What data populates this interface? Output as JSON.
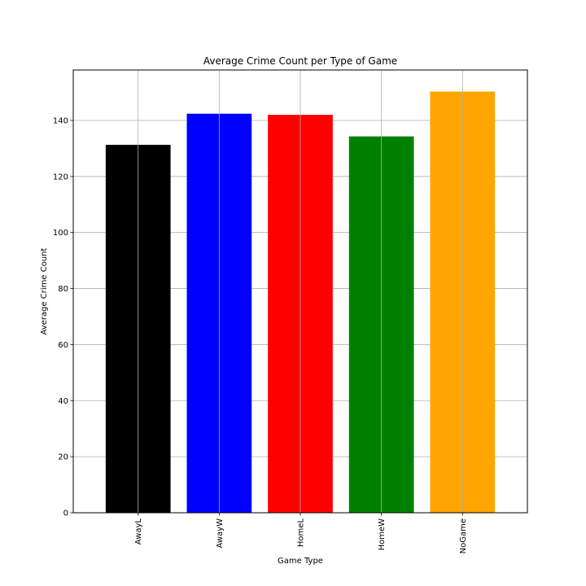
{
  "chart_data": {
    "type": "bar",
    "title": "Average Crime Count per Type of Game",
    "xlabel": "Game Type",
    "ylabel": "Average Crime Count",
    "categories": [
      "AwayL",
      "AwayW",
      "HomeL",
      "HomeW",
      "NoGame"
    ],
    "values": [
      131.3,
      142.4,
      142.0,
      134.3,
      150.3
    ],
    "colors": [
      "#000000",
      "#0000ff",
      "#ff0000",
      "#008000",
      "#ffa500"
    ],
    "ylim": [
      0,
      158
    ],
    "yticks": [
      0,
      20,
      40,
      60,
      80,
      100,
      120,
      140
    ],
    "grid": true,
    "xtick_rotation": 90
  }
}
